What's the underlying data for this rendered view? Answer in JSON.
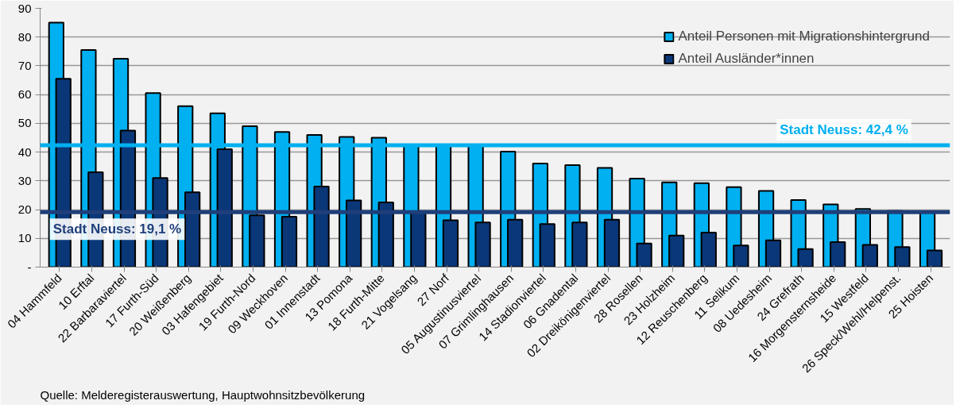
{
  "chart_data": {
    "type": "bar",
    "categories": [
      "04 Hammfeld",
      "10 Erftal",
      "22 Barbaraviertel",
      "17 Furth-Süd",
      "20 Weißenberg",
      "03 Hafengebiet",
      "19 Furth-Nord",
      "09 Weckhoven",
      "01 Innenstadt",
      "13 Pomona",
      "18 Furth-Mitte",
      "21 Vogelsang",
      "27 Norf",
      "05 Augustinusviertel",
      "07 Grimlinghausen",
      "14 Stadionviertel",
      "06 Gnadental",
      "02 Dreikönigenviertel",
      "28 Rosellen",
      "23 Holzheim",
      "12 Reuschenberg",
      "11 Selikum",
      "08 Uedesheim",
      "24 Grefrath",
      "16 Morgensternsheide",
      "15 Westfeld",
      "26 Speck/Wehl/Helpenst.",
      "25 Hoisten"
    ],
    "series": [
      {
        "name": "Anteil Personen mit Migrationshintergrund",
        "color": "#00b0f0",
        "values": [
          85,
          75.5,
          72.5,
          60.5,
          56,
          53.5,
          49,
          47,
          46,
          45.3,
          45,
          42.5,
          42.5,
          42.5,
          40.2,
          36,
          35.5,
          34.5,
          30.8,
          29.5,
          29.2,
          27.8,
          26.5,
          23.3,
          21.8,
          20.2,
          19.5,
          19.3
        ]
      },
      {
        "name": "Anteil Ausländer*innen",
        "color": "#0a3778",
        "values": [
          65.5,
          33,
          47.5,
          31,
          26,
          41,
          18,
          17.5,
          28,
          23.2,
          22.5,
          19,
          16.3,
          15.5,
          16.5,
          15,
          15.5,
          16.5,
          8.2,
          11,
          12,
          7.5,
          9.3,
          6.3,
          8.7,
          7.7,
          7,
          5.8
        ]
      }
    ],
    "ylim": [
      0,
      90
    ],
    "yticks": [
      {
        "value": 0,
        "label": "-"
      },
      10,
      20,
      30,
      40,
      50,
      60,
      70,
      80,
      90
    ],
    "grid": "y",
    "legend": "top right",
    "ref_lines": [
      {
        "axis": "y",
        "value": 42.4,
        "label": "Stadt Neuss: 42,4 %",
        "color": "#00b0f0"
      },
      {
        "axis": "y",
        "value": 19.1,
        "label": "Stadt Neuss: 19,1 %",
        "color": "#1f3f7a"
      }
    ],
    "annotations": [
      "Quelle: Melderegisterauswertung, Hauptwohnsitzbevölkerung"
    ]
  }
}
